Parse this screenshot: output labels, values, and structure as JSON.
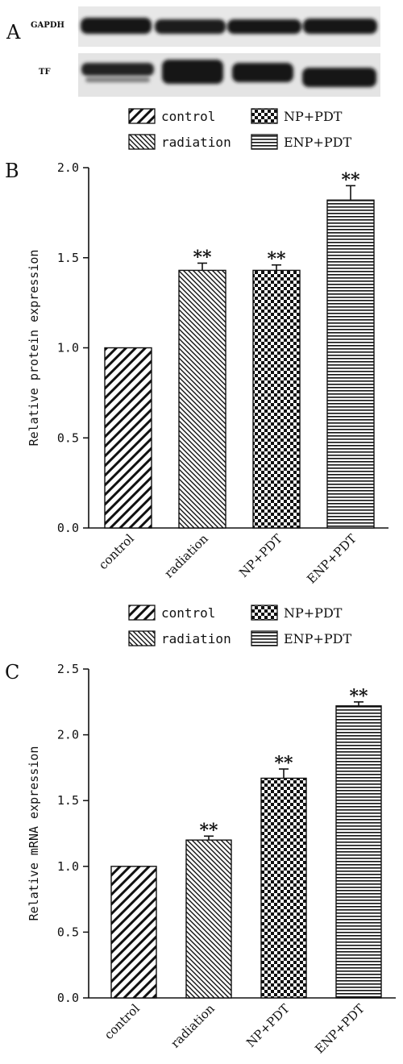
{
  "panel_labels": {
    "A": "A",
    "B": "B",
    "C": "C"
  },
  "blot": {
    "rows": [
      {
        "label": "GAPDH"
      },
      {
        "label": "TF"
      }
    ]
  },
  "colors": {
    "ink": "#111111",
    "blot_bg": "#e6e6e6",
    "band": "#1a1a1a"
  },
  "chart_data": [
    {
      "type": "bar",
      "categories": [
        "control",
        "radiation",
        "NP+PDT",
        "ENP+PDT"
      ],
      "patterns": [
        "diag-right",
        "diag-right-dense",
        "checker",
        "horizontal"
      ],
      "values": [
        1.0,
        1.43,
        1.43,
        1.82
      ],
      "errors": [
        0.0,
        0.04,
        0.03,
        0.08
      ],
      "significance": [
        "",
        "**",
        "**",
        "**"
      ],
      "ylabel": "Relative protein expression",
      "ylim": [
        0.0,
        2.0
      ],
      "yticks": [
        "0.0",
        "0.5",
        "1.0",
        "1.5",
        "2.0"
      ],
      "legend": [
        "control",
        "radiation",
        "NP+PDT",
        "ENP+PDT"
      ]
    },
    {
      "type": "bar",
      "categories": [
        "control",
        "radiation",
        "NP+PDT",
        "ENP+PDT"
      ],
      "patterns": [
        "diag-right",
        "diag-right-dense",
        "checker",
        "horizontal"
      ],
      "values": [
        1.0,
        1.2,
        1.67,
        2.22
      ],
      "errors": [
        0.0,
        0.03,
        0.07,
        0.03
      ],
      "significance": [
        "",
        "**",
        "**",
        "**"
      ],
      "ylabel": "Relative mRNA expression",
      "ylim": [
        0.0,
        2.5
      ],
      "yticks": [
        "0.0",
        "0.5",
        "1.0",
        "1.5",
        "2.0",
        "2.5"
      ],
      "legend": [
        "control",
        "radiation",
        "NP+PDT",
        "ENP+PDT"
      ]
    }
  ]
}
